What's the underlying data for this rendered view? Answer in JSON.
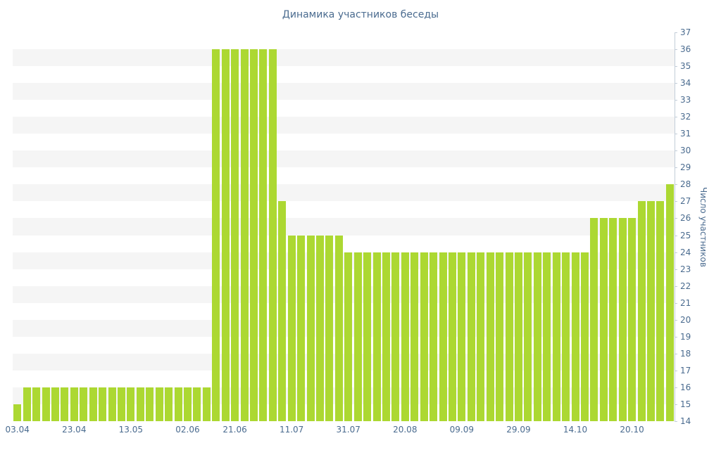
{
  "chart_data": {
    "type": "bar",
    "title": "Динамика участников беседы",
    "xlabel": "",
    "ylabel": "Число участников",
    "ylim": [
      14,
      37
    ],
    "y_ticks": [
      14,
      15,
      16,
      17,
      18,
      19,
      20,
      21,
      22,
      23,
      24,
      25,
      26,
      27,
      28,
      29,
      30,
      31,
      32,
      33,
      34,
      35,
      36,
      37
    ],
    "x_tick_labels": [
      "03.04",
      "23.04",
      "13.05",
      "02.06",
      "21.06",
      "11.07",
      "31.07",
      "20.08",
      "09.09",
      "29.09",
      "14.10",
      "20.10"
    ],
    "x_tick_indices": [
      0,
      6,
      12,
      18,
      23,
      29,
      35,
      41,
      47,
      53,
      59,
      65
    ],
    "values": [
      15,
      16,
      16,
      16,
      16,
      16,
      16,
      16,
      16,
      16,
      16,
      16,
      16,
      16,
      16,
      16,
      16,
      16,
      16,
      16,
      16,
      36,
      36,
      36,
      36,
      36,
      36,
      36,
      27,
      25,
      25,
      25,
      25,
      25,
      25,
      24,
      24,
      24,
      24,
      24,
      24,
      24,
      24,
      24,
      24,
      24,
      24,
      24,
      24,
      24,
      24,
      24,
      24,
      24,
      24,
      24,
      24,
      24,
      24,
      24,
      24,
      26,
      26,
      26,
      26,
      26,
      27,
      27,
      27,
      28
    ],
    "legend_position": "none",
    "grid": "horizontal-stripes",
    "colors": {
      "bar": "#acd832",
      "stripe": "#f5f5f5",
      "text": "#4a6b8f",
      "axis": "#c2cdd8"
    }
  }
}
